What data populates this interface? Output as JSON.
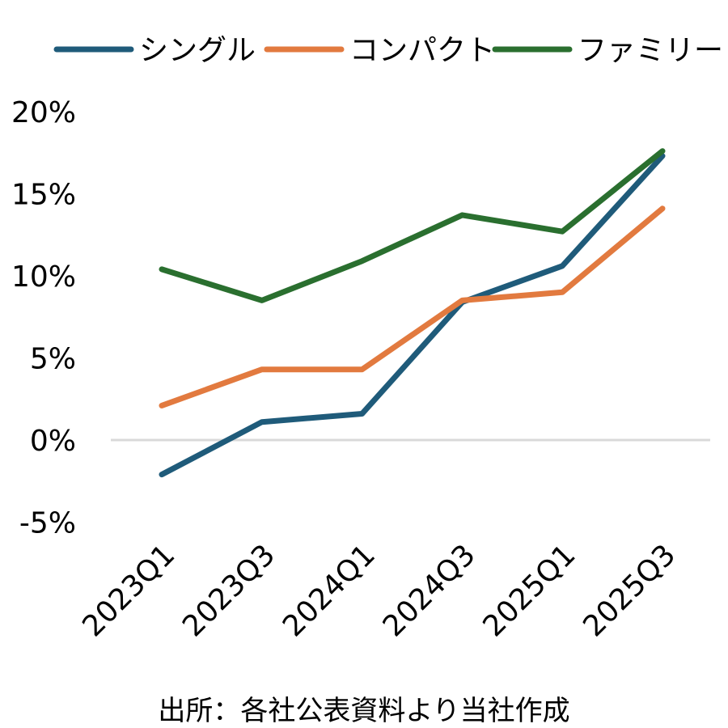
{
  "chart_data": {
    "type": "line",
    "title": "",
    "xlabel": "",
    "ylabel": "",
    "categories": [
      "2023Q1",
      "2023Q3",
      "2024Q1",
      "2024Q3",
      "2025Q1",
      "2025Q3"
    ],
    "series": [
      {
        "name": "シングル",
        "color": "#1f5b7a",
        "values": [
          -2.1,
          1.1,
          1.6,
          8.4,
          10.6,
          17.3
        ]
      },
      {
        "name": "コンパクト",
        "color": "#e27a3f",
        "values": [
          2.1,
          4.3,
          4.3,
          8.5,
          9.0,
          14.1
        ]
      },
      {
        "name": "ファミリー",
        "color": "#2a6f2f",
        "values": [
          10.4,
          8.5,
          10.9,
          13.7,
          12.7,
          17.6
        ]
      }
    ],
    "ylim": [
      -5,
      20
    ],
    "yticks": [
      -5,
      0,
      5,
      10,
      15,
      20
    ],
    "ytick_labels": [
      "-5%",
      "0%",
      "5%",
      "10%",
      "15%",
      "20%"
    ],
    "zero_line_color": "#d9d9d9",
    "legend": "top",
    "grid": false
  },
  "footer": {
    "source": "出所：各社公表資料より当社作成"
  }
}
